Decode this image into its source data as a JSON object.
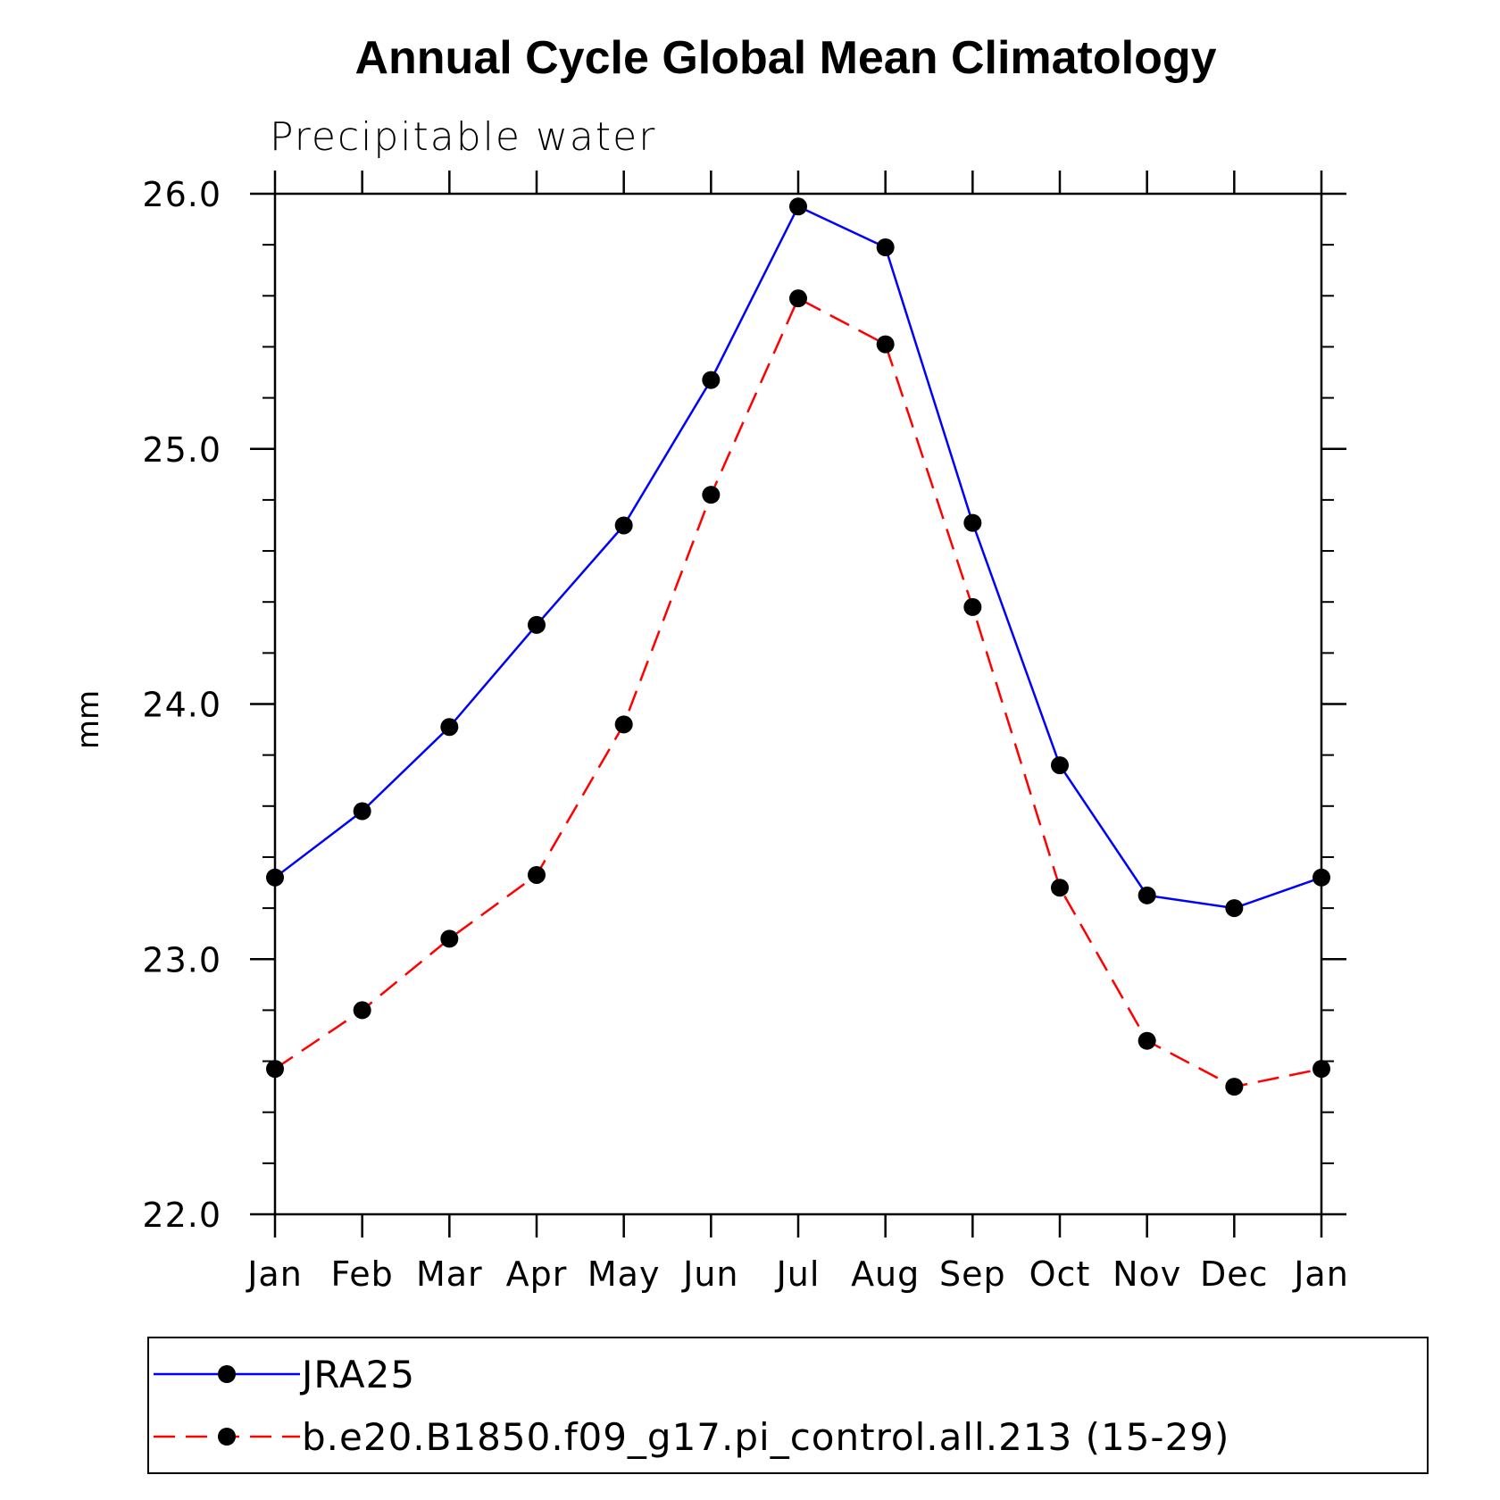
{
  "chart_data": {
    "type": "line",
    "title": "Annual Cycle Global Mean Climatology",
    "subtitle": "Precipitable water",
    "xlabel": "",
    "ylabel": "mm",
    "categories": [
      "Jan",
      "Feb",
      "Mar",
      "Apr",
      "May",
      "Jun",
      "Jul",
      "Aug",
      "Sep",
      "Oct",
      "Nov",
      "Dec",
      "Jan"
    ],
    "ylim": [
      22.0,
      26.0
    ],
    "yticks": [
      "22.0",
      "23.0",
      "24.0",
      "25.0",
      "26.0"
    ],
    "grid": false,
    "legend_position": "bottom",
    "series": [
      {
        "name": "JRA25",
        "color": "#0000ff",
        "style": "solid",
        "marker": "filled-circle",
        "values": [
          23.32,
          23.58,
          23.91,
          24.31,
          24.7,
          25.27,
          25.95,
          25.79,
          24.71,
          23.76,
          23.25,
          23.2,
          23.32
        ]
      },
      {
        "name": "b.e20.B1850.f09_g17.pi_control.all.213 (15-29)",
        "color": "#ff0000",
        "style": "dashed",
        "marker": "filled-circle",
        "values": [
          22.57,
          22.8,
          23.08,
          23.33,
          23.92,
          24.82,
          25.59,
          25.41,
          24.38,
          23.28,
          22.68,
          22.5,
          22.57
        ]
      }
    ]
  }
}
